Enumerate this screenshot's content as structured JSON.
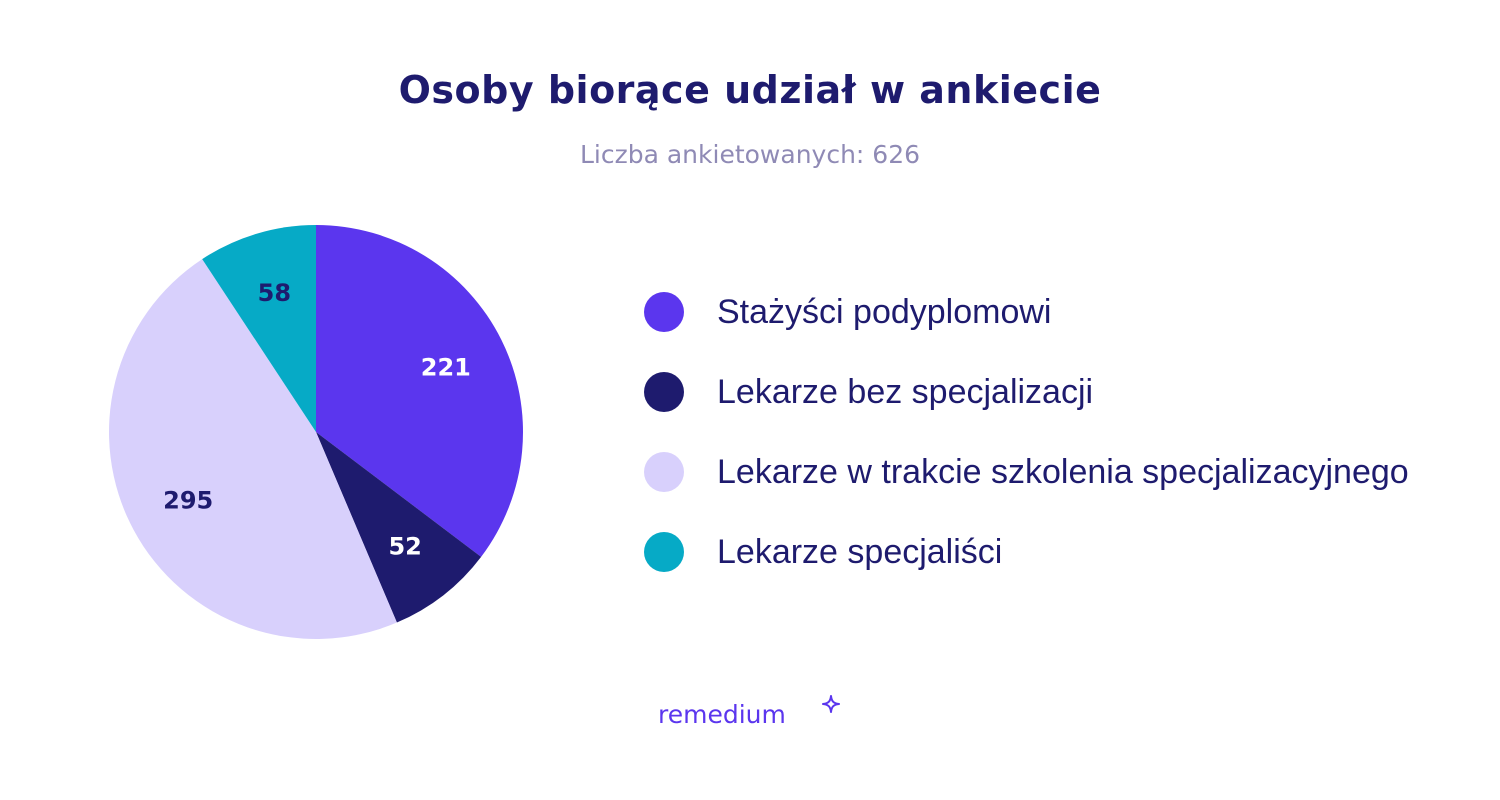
{
  "title": "Osoby biorące udział w ankiecie",
  "subtitle": "Liczba ankietowanych: 626",
  "colors": {
    "title": "#1e1b6e",
    "subtitle": "#8f8ab5",
    "legend_text": "#1e1b6e",
    "brand": "#5b36ee"
  },
  "chart_data": {
    "type": "pie",
    "title": "Osoby biorące udział w ankiecie",
    "subtitle": "Liczba ankietowanych: 626",
    "legend_position": "right",
    "slices": [
      {
        "label": "Stażyści podyplomowi",
        "value": 221,
        "color": "#5b36ee",
        "label_color": "#ffffff"
      },
      {
        "label": "Lekarze bez specjalizacji",
        "value": 52,
        "color": "#1e1b6e",
        "label_color": "#ffffff"
      },
      {
        "label": "Lekarze w trakcie szkolenia specjalizacyjnego",
        "value": 295,
        "color": "#d8d0fc",
        "label_color": "#1e1b6e"
      },
      {
        "label": "Lekarze specjaliści",
        "value": 58,
        "color": "#06aac6",
        "label_color": "#1e1b6e"
      }
    ]
  },
  "brand": {
    "name": "remedium",
    "icon": "sparkle-icon"
  }
}
